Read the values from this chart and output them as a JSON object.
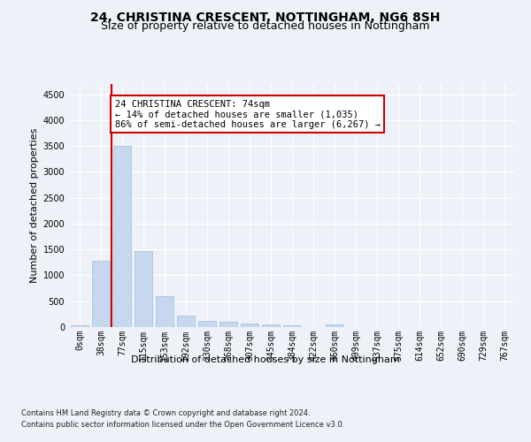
{
  "title1": "24, CHRISTINA CRESCENT, NOTTINGHAM, NG6 8SH",
  "title2": "Size of property relative to detached houses in Nottingham",
  "xlabel": "Distribution of detached houses by size in Nottingham",
  "ylabel": "Number of detached properties",
  "categories": [
    "0sqm",
    "38sqm",
    "77sqm",
    "115sqm",
    "153sqm",
    "192sqm",
    "230sqm",
    "268sqm",
    "307sqm",
    "345sqm",
    "384sqm",
    "422sqm",
    "460sqm",
    "499sqm",
    "537sqm",
    "575sqm",
    "614sqm",
    "652sqm",
    "690sqm",
    "729sqm",
    "767sqm"
  ],
  "values": [
    30,
    1280,
    3500,
    1470,
    600,
    225,
    120,
    100,
    75,
    50,
    40,
    5,
    50,
    5,
    0,
    0,
    0,
    0,
    0,
    0,
    0
  ],
  "bar_color": "#c5d8f0",
  "bar_edgecolor": "#a0bcd8",
  "marker_bar_index": 1,
  "marker_color": "#cc0000",
  "annotation_text": "24 CHRISTINA CRESCENT: 74sqm\n← 14% of detached houses are smaller (1,035)\n86% of semi-detached houses are larger (6,267) →",
  "annotation_box_facecolor": "#ffffff",
  "annotation_box_edgecolor": "#cc0000",
  "ylim": [
    0,
    4700
  ],
  "yticks": [
    0,
    500,
    1000,
    1500,
    2000,
    2500,
    3000,
    3500,
    4000,
    4500
  ],
  "footer1": "Contains HM Land Registry data © Crown copyright and database right 2024.",
  "footer2": "Contains public sector information licensed under the Open Government Licence v3.0.",
  "bg_color": "#eef2f8",
  "plot_bg_color": "#eef2f8",
  "grid_color": "#ffffff",
  "title1_fontsize": 10,
  "title2_fontsize": 9,
  "xlabel_fontsize": 8,
  "ylabel_fontsize": 8,
  "tick_fontsize": 7,
  "footer_fontsize": 6,
  "ann_fontsize": 7.5
}
